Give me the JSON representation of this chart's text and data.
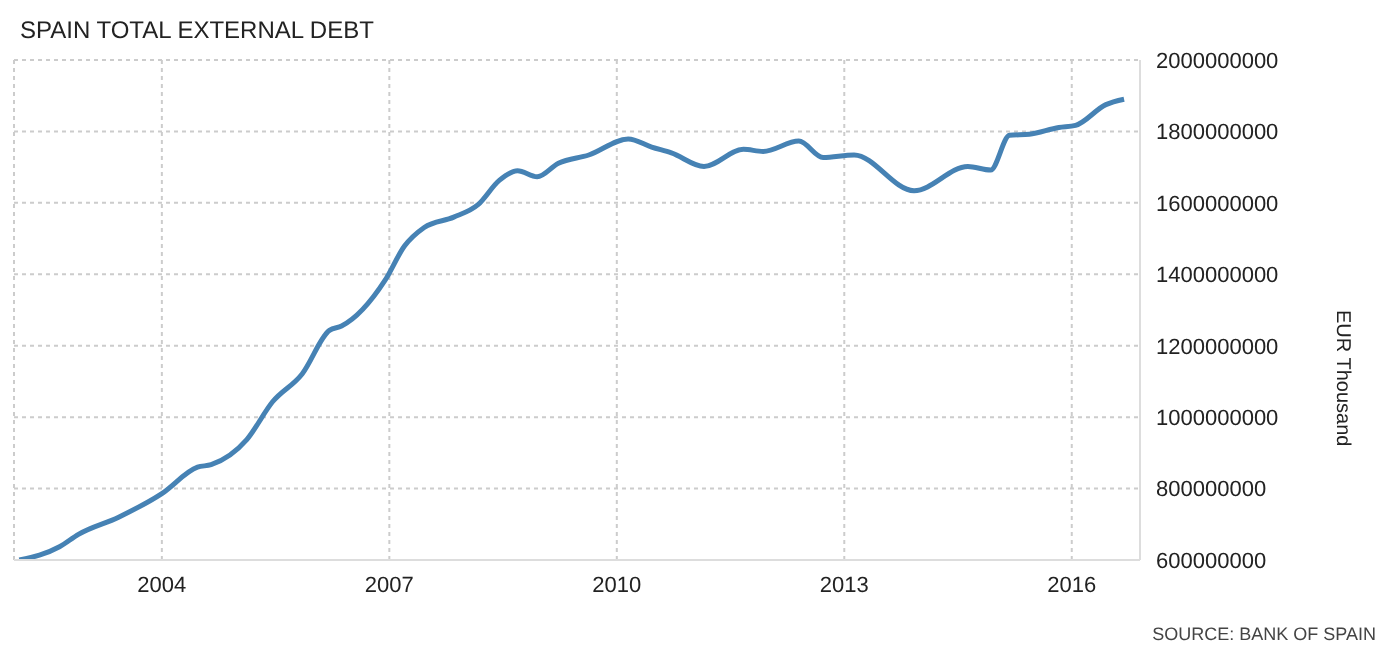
{
  "chart_data": {
    "type": "line",
    "title": "SPAIN TOTAL EXTERNAL DEBT",
    "ylabel": "EUR Thousand",
    "annotations": [
      "SOURCE: BANK OF SPAIN"
    ],
    "x": [
      2002.12,
      2002.65,
      2002.9,
      2003.43,
      2004.0,
      2004.47,
      2004.65,
      2005.12,
      2005.46,
      2005.85,
      2006.21,
      2006.37,
      2006.94,
      2007.2,
      2007.46,
      2007.85,
      2008.17,
      2008.45,
      2008.69,
      2008.95,
      2009.23,
      2009.63,
      2010.15,
      2010.46,
      2010.72,
      2011.15,
      2011.67,
      2011.93,
      2012.4,
      2012.72,
      2013.13,
      2013.92,
      2014.63,
      2014.93,
      2015.18,
      2015.44,
      2015.83,
      2016.05,
      2016.45,
      2016.69
    ],
    "series": [
      {
        "color": "#4682b4",
        "values": [
          600000000,
          637000000,
          672000000,
          720000000,
          786000000,
          860000000,
          867000000,
          937000000,
          1043000000,
          1121000000,
          1243000000,
          1255000000,
          1382000000,
          1479000000,
          1531000000,
          1560000000,
          1595000000,
          1663000000,
          1690000000,
          1673000000,
          1711000000,
          1734000000,
          1779000000,
          1756000000,
          1740000000,
          1702000000,
          1750000000,
          1744000000,
          1773000000,
          1727000000,
          1734000000,
          1634000000,
          1702000000,
          1692000000,
          1789000000,
          1792000000,
          1811000000,
          1817000000,
          1875000000,
          1890000000
        ]
      }
    ],
    "xlim": [
      2002.05,
      2016.9
    ],
    "xticks": [
      2004,
      2007,
      2010,
      2013,
      2016
    ],
    "ylim": [
      600000000,
      2000000000
    ],
    "yticks": [
      600000000,
      800000000,
      1000000000,
      1200000000,
      1400000000,
      1600000000,
      1800000000,
      2000000000
    ],
    "grid": true,
    "legend": false,
    "marker": "none",
    "line_style": "solid"
  }
}
